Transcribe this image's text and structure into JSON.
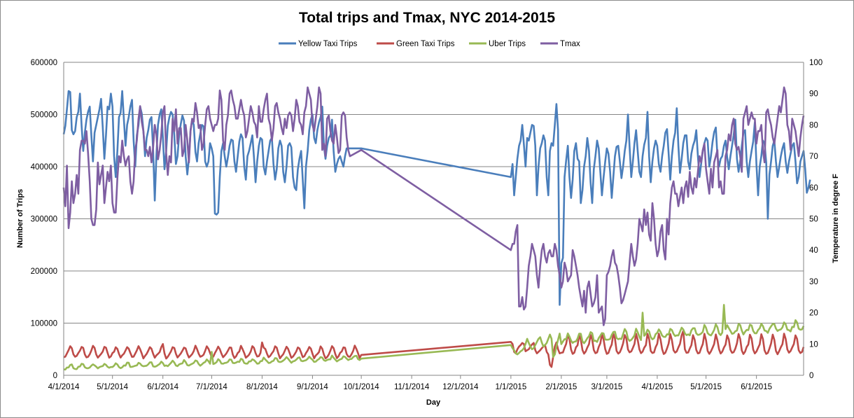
{
  "chart_data": {
    "type": "line",
    "title": "Total trips and Tmax, NYC 2014-2015",
    "xlabel": "Day",
    "ylabel": "Number of Trips",
    "y2label": "Temperature in degree F",
    "xticks": [
      "4/1/2014",
      "5/1/2014",
      "6/1/2014",
      "7/1/2014",
      "8/1/2014",
      "9/1/2014",
      "10/1/2014",
      "11/1/2014",
      "12/1/2014",
      "1/1/2015",
      "2/1/2015",
      "3/1/2015",
      "4/1/2015",
      "5/1/2015",
      "6/1/2015"
    ],
    "xlim": [
      "2014-04-01",
      "2015-06-30"
    ],
    "ylim": [
      0,
      600000
    ],
    "yticks": [
      "0",
      "100000",
      "200000",
      "300000",
      "400000",
      "500000",
      "600000"
    ],
    "y2lim": [
      0,
      100
    ],
    "y2ticks": [
      "0",
      "10",
      "20",
      "30",
      "40",
      "50",
      "60",
      "70",
      "80",
      "90",
      "100"
    ],
    "grid": "horizontal",
    "legend_position": "top",
    "series": [
      {
        "name": "Yellow Taxi Trips",
        "color": "#4a7ebb",
        "axis": "left",
        "segments": [
          {
            "start": "2014-04-01",
            "values": [
              462000,
              478000,
              510000,
              545000,
              543000,
              470000,
              462000,
              468000,
              495000,
              505000,
              540000,
              478000,
              430000,
              465000,
              490000,
              505000,
              515000,
              460000,
              410000,
              465000,
              480000,
              495000,
              510000,
              530000,
              475000,
              415000,
              460000,
              515000,
              510000,
              540000,
              515000,
              420000,
              380000,
              430000,
              495000,
              503000,
              545000,
              490000,
              440000,
              480000,
              495000,
              515000,
              528000,
              450000,
              400000,
              460000,
              480000,
              515000,
              502000,
              470000,
              420000,
              455000,
              470000,
              490000,
              495000,
              430000,
              335000,
              420000,
              480000,
              500000,
              510000,
              455000,
              395000,
              430000,
              478000,
              495000,
              505000,
              500000,
              460000,
              405000,
              420000,
              460000,
              482000,
              498000,
              488000,
              420000,
              385000,
              415000,
              470000,
              490000,
              480000,
              428000,
              410000,
              445000,
              463000,
              480000,
              477000,
              410000,
              400000,
              410000,
              445000,
              435000,
              420000,
              310000,
              308000,
              312000,
              380000,
              430000,
              445000,
              420000,
              400000,
              418000,
              440000,
              452000,
              450000,
              410000,
              390000,
              420000,
              448000,
              462000,
              455000,
              400000,
              375000,
              420000,
              430000,
              445000,
              460000,
              418000,
              370000,
              410000,
              440000,
              455000,
              452000,
              400000,
              385000,
              410000,
              430000,
              450000,
              455000,
              405000,
              375000,
              395000,
              435000,
              450000,
              440000,
              390000,
              370000,
              400000,
              440000,
              445000,
              437000,
              380000,
              360000,
              355000,
              395000,
              415000,
              430000,
              375000,
              320000,
              400000,
              430000,
              470000,
              490000,
              500000,
              455000,
              445000,
              470000,
              485000,
              495000,
              515000,
              440000,
              415000,
              440000,
              455000,
              460000,
              490000,
              430000,
              390000,
              405000,
              415000,
              420000,
              410000,
              400000,
              420000,
              435000
            ]
          },
          {
            "start": "2014-10-01",
            "values": [
              435000
            ]
          },
          {
            "start": "2015-01-01",
            "values": [
              380000,
              405000,
              345000,
              380000,
              415000,
              440000,
              450000,
              480000,
              443000,
              400000,
              455000,
              450000,
              465000,
              480000,
              478000,
              440000,
              345000,
              400000,
              435000,
              445000,
              460000,
              450000,
              380000,
              345000,
              430000,
              445000,
              440000,
              480000,
              520000,
              470000,
              135000,
              215000,
              225000,
              380000,
              412000,
              440000,
              380000,
              340000,
              375000,
              430000,
              445000,
              415000,
              410000,
              330000,
              355000,
              400000,
              420000,
              455000,
              430000,
              370000,
              330000,
              395000,
              420000,
              450000,
              435000,
              390000,
              345000,
              380000,
              410000,
              435000,
              425000,
              390000,
              340000,
              380000,
              420000,
              438000,
              440000,
              410000,
              378000,
              400000,
              430000,
              450000,
              500000,
              438000,
              380000,
              410000,
              445000,
              470000,
              430000,
              390000,
              380000,
              420000,
              442000,
              455000,
              505000,
              420000,
              370000,
              410000,
              435000,
              450000,
              440000,
              405000,
              390000,
              420000,
              440000,
              465000,
              472000,
              425000,
              375000,
              420000,
              450000,
              465000,
              512000,
              440000,
              388000,
              415000,
              445000,
              460000,
              460000,
              410000,
              395000,
              425000,
              440000,
              450000,
              470000,
              420000,
              380000,
              405000,
              430000,
              445000,
              455000,
              450000,
              400000,
              420000,
              447000,
              466000,
              475000,
              420000,
              400000,
              415000,
              420000,
              440000,
              450000,
              418000,
              395000,
              420000,
              440000,
              460000,
              490000,
              415000,
              390000,
              410000,
              440000,
              465000,
              470000,
              410000,
              380000,
              410000,
              430000,
              448000,
              485000,
              405000,
              345000,
              400000,
              420000,
              450000,
              445000,
              408000,
              300000,
              385000,
              410000,
              440000,
              450000,
              410000,
              380000,
              400000,
              420000,
              435000,
              445000,
              410000,
              388000,
              410000,
              425000,
              440000,
              445000,
              410000,
              368000,
              380000,
              410000,
              420000,
              430000,
              395000,
              350000,
              360000,
              375000
            ]
          }
        ]
      },
      {
        "name": "Green Taxi Trips",
        "color": "#be4b48",
        "axis": "left",
        "weekly_pattern_2014": [
          38000,
          40000,
          44000,
          48000,
          55000,
          52000,
          44000
        ],
        "weekly_pattern_2015": [
          47000,
          49000,
          55000,
          60000,
          74000,
          67000,
          52000
        ],
        "segments": [
          {
            "start": "2014-04-01",
            "end": "2014-09-30",
            "low": 34000,
            "high": 55000,
            "peaks": [
              60000,
              63000
            ]
          },
          {
            "start": "2014-10-01",
            "values": [
              39000
            ]
          },
          {
            "start": "2015-01-01",
            "values": [
              64000,
              60000,
              45000,
              42000,
              50000,
              55000,
              58000,
              62000,
              60000,
              46000,
              48000,
              50000,
              55000,
              59000,
              62000,
              48000,
              42000,
              45000,
              48000,
              52000,
              55000,
              58000,
              45000,
              40000,
              20000,
              16000,
              35000,
              55000,
              63000,
              50000,
              42000
            ]
          },
          {
            "start": "2015-02-01",
            "end": "2015-06-30",
            "low": 42000,
            "high": 78000,
            "peaks": [
              85000
            ]
          }
        ]
      },
      {
        "name": "Uber Trips",
        "color": "#98b954",
        "axis": "left",
        "segments": [
          {
            "start": "2014-04-01",
            "from": 16000,
            "to": 34000,
            "amp": 9000,
            "peaks": [
              45000
            ]
          },
          {
            "start": "2014-10-01",
            "values": [
              32000
            ]
          },
          {
            "start": "2015-01-01",
            "values": [
              58000,
              52000,
              48000,
              42000,
              40000,
              43000,
              46000,
              48000,
              52000,
              60000,
              70000,
              62000,
              55000,
              50000,
              52000,
              58000,
              64000,
              70000,
              73000,
              63000,
              55000,
              58000,
              62000,
              70000,
              78000,
              70000,
              35000,
              40000,
              56000,
              68000,
              80000
            ]
          },
          {
            "start": "2015-02-01",
            "from": 70000,
            "to": 95000,
            "amp": 18000,
            "peaks": [
              120000,
              135000
            ]
          }
        ]
      },
      {
        "name": "Tmax",
        "color": "#7e5ea2",
        "axis": "right",
        "segments": [
          {
            "start": "2014-04-01",
            "values": [
              60,
              54,
              67,
              47,
              52,
              62,
              55,
              58,
              64,
              58,
              72,
              75,
              75,
              74,
              78,
              71,
              62,
              50,
              48,
              48,
              53,
              68,
              61,
              64,
              67,
              55,
              60,
              65,
              62,
              67,
              55,
              52,
              52,
              63,
              70,
              68,
              75,
              70,
              67,
              69,
              70,
              62,
              58,
              62,
              72,
              75,
              82,
              86,
              81,
              78,
              72,
              72,
              70,
              73,
              68,
              73,
              80,
              77,
              69,
              72,
              77,
              84,
              86,
              71,
              64,
              70,
              68,
              82,
              78,
              85,
              74,
              79,
              79,
              70,
              72,
              80,
              75,
              68,
              78,
              82,
              81,
              87,
              84,
              79,
              80,
              72,
              74,
              80,
              85,
              86,
              82,
              80,
              78,
              80,
              80,
              82,
              91,
              88,
              75,
              72,
              80,
              83,
              90,
              91,
              88,
              86,
              82,
              82,
              85,
              88,
              85,
              83,
              76,
              78,
              82,
              86,
              84,
              81,
              80,
              76,
              86,
              81,
              81,
              85,
              88,
              90,
              82,
              80,
              75,
              79,
              86,
              87,
              84,
              82,
              79,
              77,
              82,
              79,
              83,
              84,
              83,
              78,
              82,
              88,
              86,
              81,
              80,
              77,
              84,
              86,
              92,
              90,
              88,
              80,
              78,
              82,
              86,
              92,
              90,
              72,
              74,
              70,
              82,
              83,
              78,
              75,
              74,
              80,
              76,
              71,
              72,
              83,
              84,
              83,
              76,
              72,
              70
            ]
          },
          {
            "start": "2014-10-01",
            "values": [
              72
            ]
          },
          {
            "start": "2015-01-01",
            "values": [
              40,
              42,
              42,
              46,
              48,
              22,
              22,
              25,
              21,
              22,
              28,
              35,
              38,
              42,
              40,
              38,
              32,
              28,
              35,
              40,
              42,
              38,
              36,
              39,
              40,
              38,
              38,
              42,
              40,
              35,
              32,
              28,
              30,
              36,
              34,
              30,
              31,
              32,
              40,
              38,
              35,
              32,
              28,
              25,
              22,
              27,
              20,
              28,
              30,
              26,
              22,
              23,
              25,
              32,
              20,
              21,
              22,
              16,
              18,
              32,
              33,
              35,
              38,
              40,
              36,
              35,
              32,
              28,
              23,
              24,
              26,
              28,
              30,
              36,
              42,
              38,
              35,
              37,
              42,
              50,
              48,
              46,
              53,
              48,
              52,
              45,
              43,
              55,
              50,
              42,
              38,
              40,
              46,
              48,
              40,
              37,
              50,
              45,
              55,
              60,
              62,
              58,
              58,
              54,
              57,
              60,
              55,
              60,
              62,
              57,
              65,
              60,
              58,
              63,
              60,
              65,
              70,
              68,
              72,
              74,
              66,
              62,
              58,
              66,
              60,
              68,
              70,
              72,
              60,
              62,
              58,
              58,
              70,
              72,
              77,
              75,
              80,
              82,
              74,
              72,
              73,
              70,
              65,
              82,
              84,
              86,
              80,
              82,
              84,
              82,
              82,
              74,
              78,
              78,
              80,
              72,
              68,
              84,
              85,
              82,
              80,
              76,
              74,
              78,
              82,
              86,
              84,
              88,
              92,
              90,
              80,
              78,
              72,
              82,
              80,
              78,
              74,
              70,
              76,
              80,
              83
            ]
          }
        ]
      }
    ]
  }
}
